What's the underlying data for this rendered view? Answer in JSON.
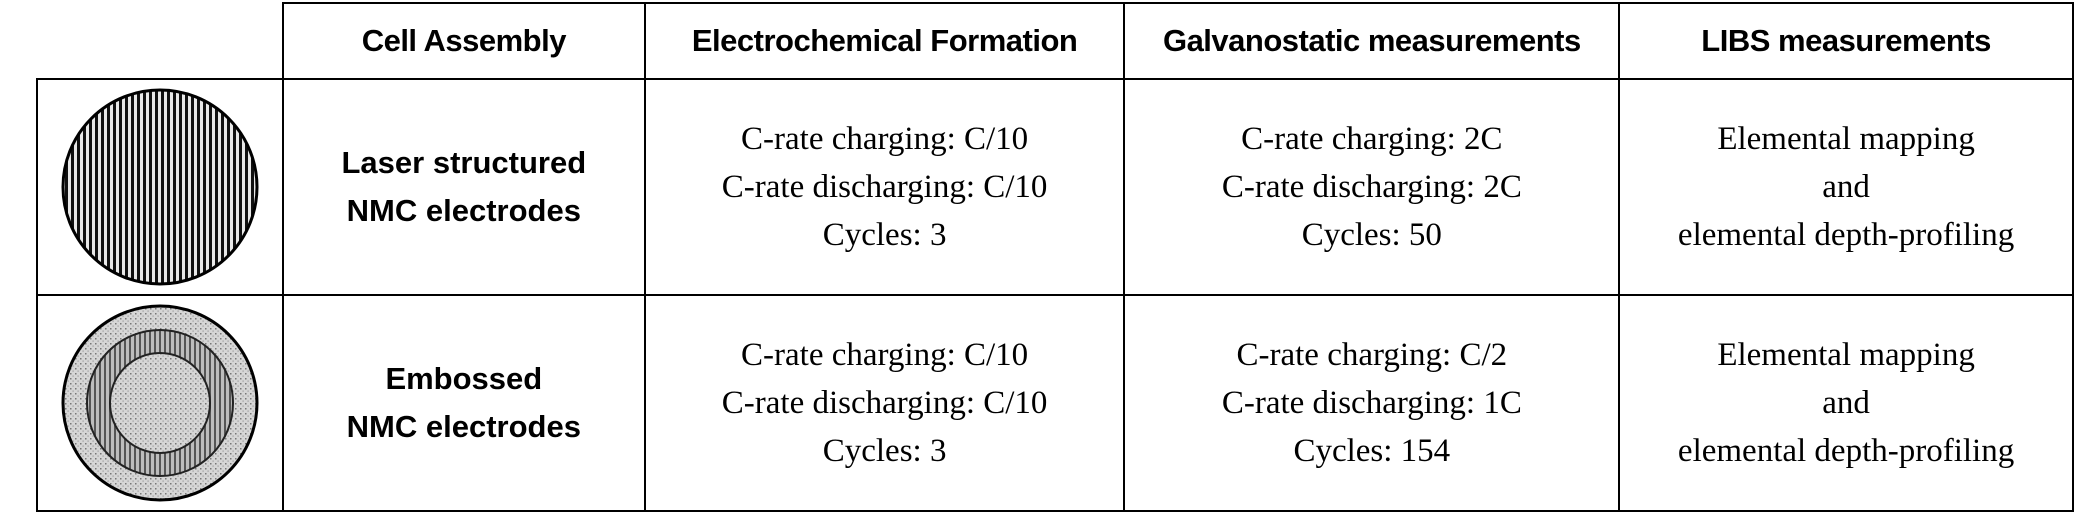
{
  "headers": [
    "Cell Assembly",
    "Electrochemical Formation",
    "Galvanostatic measurements",
    "LIBS measurements"
  ],
  "rows": [
    {
      "icon": "laser-structured-electrode-icon",
      "label": [
        "Laser structured",
        "NMC electrodes"
      ],
      "formation": [
        "C-rate charging: C/10",
        "C-rate discharging: C/10",
        "Cycles: 3"
      ],
      "galvanostatic": [
        "C-rate charging: 2C",
        "C-rate discharging: 2C",
        "Cycles: 50"
      ],
      "libs": [
        "Elemental mapping",
        "and",
        "elemental depth-profiling"
      ]
    },
    {
      "icon": "embossed-electrode-icon",
      "label": [
        "Embossed",
        "NMC electrodes"
      ],
      "formation": [
        "C-rate charging: C/10",
        "C-rate discharging: C/10",
        "Cycles: 3"
      ],
      "galvanostatic": [
        "C-rate charging: C/2",
        "C-rate discharging: 1C",
        "Cycles: 154"
      ],
      "libs": [
        "Elemental mapping",
        "and",
        "elemental depth-profiling"
      ]
    }
  ]
}
